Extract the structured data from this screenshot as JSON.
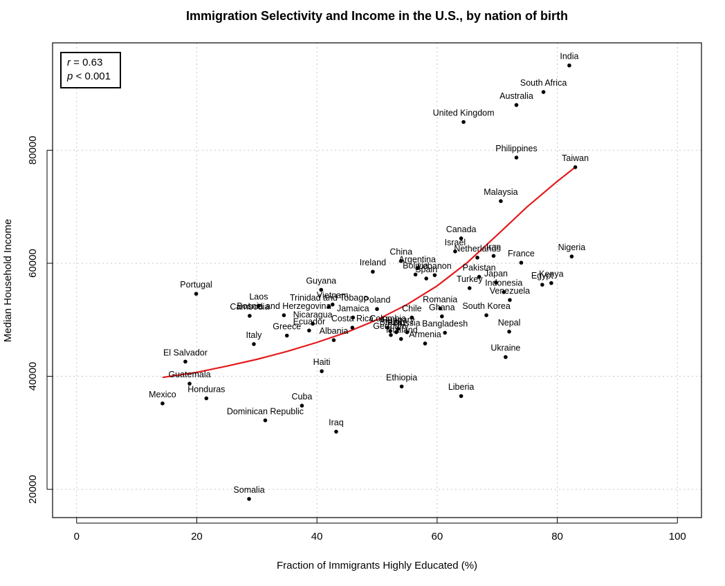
{
  "chart_data": {
    "type": "scatter",
    "title": "Immigration Selectivity and Income in the U.S., by nation of birth",
    "xlabel": "Fraction of Immigrants Highly Educated (%)",
    "ylabel": "Median Household Income",
    "xlim": [
      -4,
      104
    ],
    "ylim": [
      15000,
      99000
    ],
    "xticks": [
      0,
      20,
      40,
      60,
      80,
      100
    ],
    "yticks": [
      20000,
      40000,
      60000,
      80000
    ],
    "grid": true,
    "stats": {
      "r_label": "r",
      "r_text": " = 0.63",
      "p_label": "p",
      "p_text": " < 0.001"
    },
    "fit_line": {
      "color": "#e41a1c",
      "points": [
        [
          14.3,
          39800
        ],
        [
          20,
          40700
        ],
        [
          25,
          41800
        ],
        [
          30,
          43000
        ],
        [
          35,
          44400
        ],
        [
          40,
          46000
        ],
        [
          45,
          47800
        ],
        [
          50,
          50000
        ],
        [
          55,
          52700
        ],
        [
          60,
          56000
        ],
        [
          65,
          60100
        ],
        [
          70,
          65000
        ],
        [
          75,
          70000
        ],
        [
          80,
          74500
        ],
        [
          83,
          77000
        ]
      ]
    },
    "points": [
      {
        "name": "India",
        "x": 82.0,
        "y": 95000
      },
      {
        "name": "South Africa",
        "x": 77.7,
        "y": 90300
      },
      {
        "name": "Australia",
        "x": 73.2,
        "y": 88000
      },
      {
        "name": "United Kingdom",
        "x": 64.4,
        "y": 85000
      },
      {
        "name": "Philippines",
        "x": 73.2,
        "y": 78700
      },
      {
        "name": "Taiwan",
        "x": 83.0,
        "y": 77000
      },
      {
        "name": "Malaysia",
        "x": 70.6,
        "y": 71000
      },
      {
        "name": "Canada",
        "x": 64.0,
        "y": 64400
      },
      {
        "name": "Israel",
        "x": 63.0,
        "y": 62100
      },
      {
        "name": "Netherlands",
        "x": 66.7,
        "y": 61000
      },
      {
        "name": "Iran",
        "x": 69.4,
        "y": 61300
      },
      {
        "name": "Nigeria",
        "x": 82.4,
        "y": 61200
      },
      {
        "name": "France",
        "x": 74.0,
        "y": 60100
      },
      {
        "name": "China",
        "x": 54.0,
        "y": 60400
      },
      {
        "name": "Argentina",
        "x": 56.7,
        "y": 59100
      },
      {
        "name": "Bolivia",
        "x": 56.4,
        "y": 58000
      },
      {
        "name": "Lebanon",
        "x": 59.6,
        "y": 57900
      },
      {
        "name": "Spain",
        "x": 58.2,
        "y": 57300
      },
      {
        "name": "Ireland",
        "x": 49.3,
        "y": 58500
      },
      {
        "name": "Pakistan",
        "x": 67.0,
        "y": 57600
      },
      {
        "name": "Japan",
        "x": 69.8,
        "y": 56600
      },
      {
        "name": "Egypt",
        "x": 77.5,
        "y": 56200
      },
      {
        "name": "Kenya",
        "x": 79.0,
        "y": 56500
      },
      {
        "name": "Turkey",
        "x": 65.4,
        "y": 55600
      },
      {
        "name": "Indonesia",
        "x": 71.1,
        "y": 54900
      },
      {
        "name": "Venezuela",
        "x": 72.1,
        "y": 53500
      },
      {
        "name": "Portugal",
        "x": 19.9,
        "y": 54600
      },
      {
        "name": "Guyana",
        "x": 40.7,
        "y": 55300
      },
      {
        "name": "Vietnam",
        "x": 42.6,
        "y": 52700
      },
      {
        "name": "Laos",
        "x": 30.3,
        "y": 52500
      },
      {
        "name": "Bosnia and Herzegovina",
        "x": 34.5,
        "y": 50800
      },
      {
        "name": "Cambodia",
        "x": 28.8,
        "y": 50700
      },
      {
        "name": "Trinidad and Tobago",
        "x": 42.0,
        "y": 52300
      },
      {
        "name": "Poland",
        "x": 50.0,
        "y": 51900
      },
      {
        "name": "Romania",
        "x": 60.5,
        "y": 52000
      },
      {
        "name": "Chile",
        "x": 55.8,
        "y": 50400
      },
      {
        "name": "Ghana",
        "x": 60.8,
        "y": 50600
      },
      {
        "name": "South Korea",
        "x": 68.2,
        "y": 50800
      },
      {
        "name": "Jamaica",
        "x": 46.0,
        "y": 50400
      },
      {
        "name": "Nicaragua",
        "x": 39.3,
        "y": 49300
      },
      {
        "name": "Costa Rica",
        "x": 45.9,
        "y": 48600
      },
      {
        "name": "Colombia",
        "x": 51.8,
        "y": 48600
      },
      {
        "name": "Hungary",
        "x": 53.5,
        "y": 48400
      },
      {
        "name": "Brazil",
        "x": 52.2,
        "y": 48000
      },
      {
        "name": "Peru",
        "x": 53.2,
        "y": 47800
      },
      {
        "name": "Russia",
        "x": 55.0,
        "y": 47800
      },
      {
        "name": "Bangladesh",
        "x": 61.3,
        "y": 47700
      },
      {
        "name": "Nepal",
        "x": 72.0,
        "y": 47900
      },
      {
        "name": "Ecuador",
        "x": 38.7,
        "y": 48100
      },
      {
        "name": "Germany",
        "x": 52.3,
        "y": 47300
      },
      {
        "name": "Thailand",
        "x": 54.0,
        "y": 46600
      },
      {
        "name": "Albania",
        "x": 42.8,
        "y": 46400
      },
      {
        "name": "Greece",
        "x": 35.0,
        "y": 47200
      },
      {
        "name": "Italy",
        "x": 29.5,
        "y": 45700
      },
      {
        "name": "Armenia",
        "x": 58.0,
        "y": 45800
      },
      {
        "name": "Ukraine",
        "x": 71.4,
        "y": 43400
      },
      {
        "name": "El Salvador",
        "x": 18.1,
        "y": 42600
      },
      {
        "name": "Haiti",
        "x": 40.8,
        "y": 40900
      },
      {
        "name": "Guatemala",
        "x": 18.8,
        "y": 38700
      },
      {
        "name": "Ethiopia",
        "x": 54.1,
        "y": 38200
      },
      {
        "name": "Honduras",
        "x": 21.6,
        "y": 36100
      },
      {
        "name": "Liberia",
        "x": 64.0,
        "y": 36500
      },
      {
        "name": "Mexico",
        "x": 14.3,
        "y": 35200
      },
      {
        "name": "Cuba",
        "x": 37.5,
        "y": 34800
      },
      {
        "name": "Dominican Republic",
        "x": 31.4,
        "y": 32200
      },
      {
        "name": "Iraq",
        "x": 43.2,
        "y": 30200
      },
      {
        "name": "Somalia",
        "x": 28.7,
        "y": 18300
      }
    ]
  }
}
